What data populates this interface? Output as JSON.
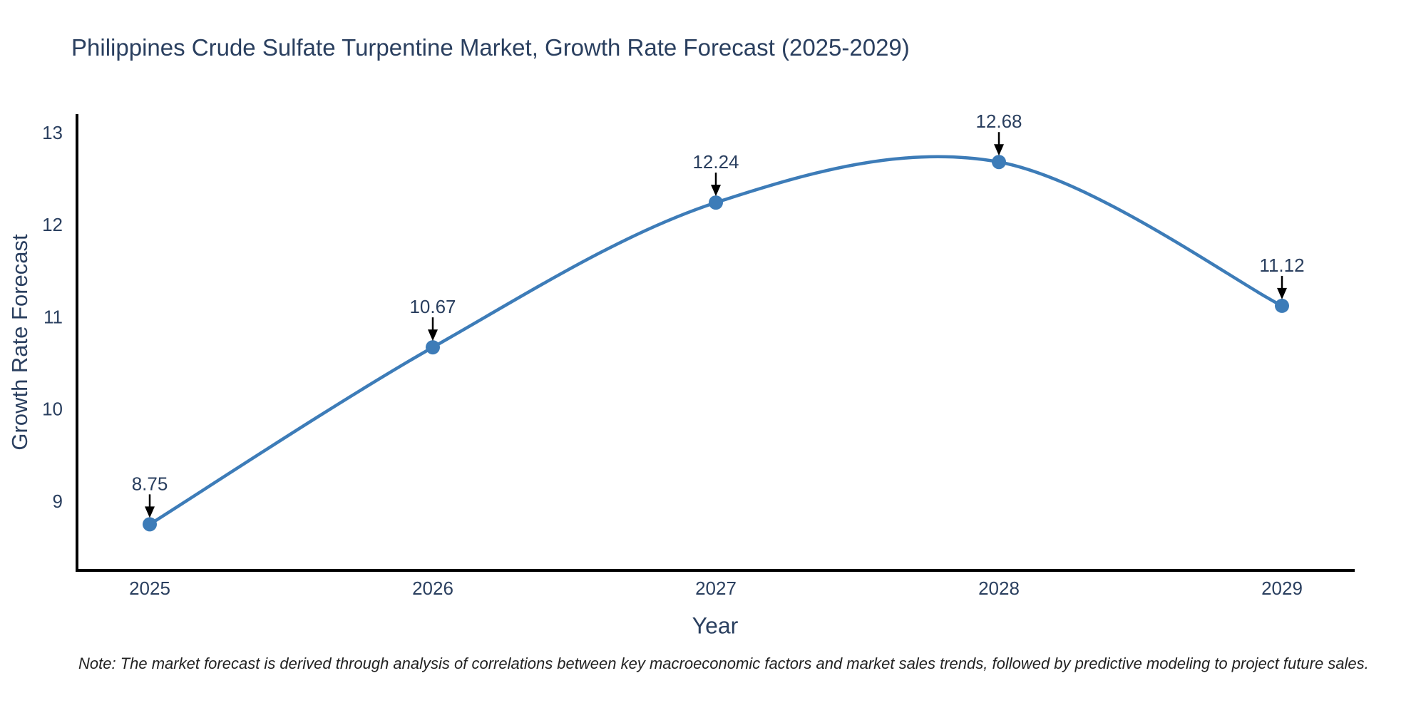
{
  "header": {
    "title": "Philippines Crude Sulfate Turpentine Market, Growth Rate Forecast (2025-2029)"
  },
  "note": "Note: The market forecast is derived through analysis of correlations between key macroeconomic factors and market sales trends, followed by predictive modeling to project future sales.",
  "colors": {
    "line": "#3d7cb8",
    "marker": "#3d7cb8",
    "axis": "#000000",
    "arrow": "#000000",
    "text": "#2a3f5f",
    "note_text": "#222222",
    "background": "#ffffff"
  },
  "chart_data": {
    "type": "line",
    "title": "Philippines Crude Sulfate Turpentine Market, Growth Rate Forecast (2025-2029)",
    "xlabel": "Year",
    "ylabel": "Growth Rate Forecast",
    "categories": [
      2025,
      2026,
      2027,
      2028,
      2029
    ],
    "values": [
      8.75,
      10.67,
      12.24,
      12.68,
      11.12
    ],
    "point_labels": [
      "8.75",
      "10.67",
      "12.24",
      "12.68",
      "11.12"
    ],
    "yticks": [
      9,
      10,
      11,
      12,
      13
    ],
    "ylim": [
      8.25,
      13.2
    ],
    "line_shape": "spline",
    "grid": false,
    "legend": false,
    "annotation_style": "value label with downward black arrow above each data point"
  }
}
